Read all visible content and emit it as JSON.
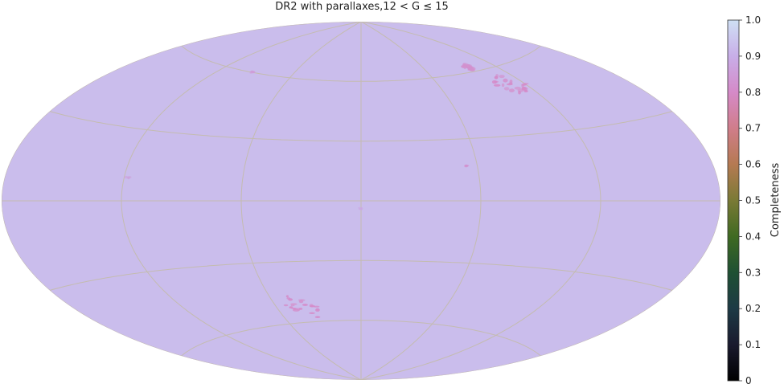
{
  "chart_data": {
    "type": "heatmap",
    "projection": "aitoff",
    "title": "DR2 with parallaxes,12 < G ≤ 15",
    "grid": true,
    "background_value": 0.93,
    "colorbar": {
      "label": "Completeness",
      "min": 0,
      "max": 1.0,
      "placement": "right",
      "ticks": [
        0,
        0.1,
        0.2,
        0.3,
        0.4,
        0.5,
        0.6,
        0.7,
        0.8,
        0.9,
        1.0
      ],
      "tick_labels": [
        "0",
        "0.1",
        "0.2",
        "0.3",
        "0.4",
        "0.5",
        "0.6",
        "0.7",
        "0.8",
        "0.9",
        "1.0"
      ],
      "colors": [
        "#000000",
        "#1a1a2e",
        "#1d3a45",
        "#1f5033",
        "#3f6a22",
        "#7a7a35",
        "#b57a52",
        "#d07d8a",
        "#d58ac8",
        "#c8aee8",
        "#cfe0f4"
      ]
    },
    "features": [
      {
        "name": "patch-northeast",
        "lon": 110,
        "lat": 52,
        "value": 0.8
      },
      {
        "name": "patch-northeast-small",
        "lon": 98,
        "lat": 62,
        "value": 0.82
      },
      {
        "name": "patch-southwest",
        "lon": -42,
        "lat": -52,
        "value": 0.8
      },
      {
        "name": "speck-center",
        "lon": 0,
        "lat": -4,
        "value": 0.88
      },
      {
        "name": "speck-east",
        "lon": 55,
        "lat": 17,
        "value": 0.82
      },
      {
        "name": "speck-west",
        "lon": -118,
        "lat": 10,
        "value": 0.86
      },
      {
        "name": "speck-northwest",
        "lon": -95,
        "lat": 60,
        "value": 0.85
      }
    ]
  }
}
